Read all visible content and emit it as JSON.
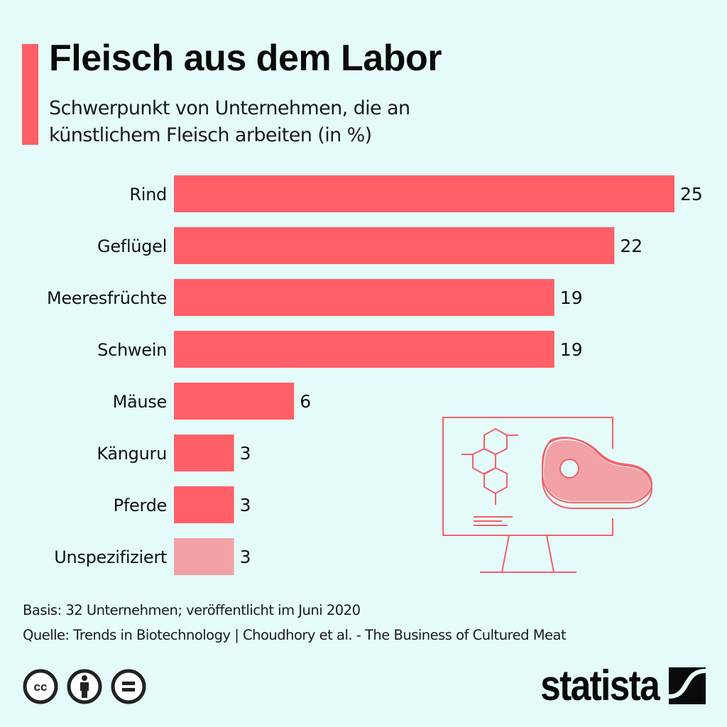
{
  "header": {
    "title": "Fleisch aus dem Labor",
    "subtitle_line1": "Schwerpunkt von Unternehmen, die an",
    "subtitle_line2": "künstlichem Fleisch arbeiten (in %)"
  },
  "colors": {
    "background": "#e4fbfa",
    "accent": "#ff5f66",
    "bar": "#ff5f66",
    "bar_unspecified": "#f2a2a6",
    "text": "#111111"
  },
  "chart_data": {
    "type": "bar",
    "orientation": "horizontal",
    "title": "Fleisch aus dem Labor",
    "subtitle": "Schwerpunkt von Unternehmen, die an künstlichem Fleisch arbeiten (in %)",
    "xlabel": "",
    "ylabel": "",
    "unit": "%",
    "categories": [
      "Rind",
      "Geflügel",
      "Meeresfrüchte",
      "Schwein",
      "Mäuse",
      "Känguru",
      "Pferde",
      "Unspezifiziert"
    ],
    "values": [
      25,
      22,
      19,
      19,
      6,
      3,
      3,
      3
    ],
    "highlight": [
      false,
      false,
      false,
      false,
      false,
      false,
      false,
      true
    ],
    "xlim": [
      0,
      25
    ],
    "grid": false,
    "legend": "none"
  },
  "illustration": {
    "description": "Monitor showing molecule diagram and a steak",
    "icons": [
      "monitor-icon",
      "molecule-icon",
      "steak-icon"
    ]
  },
  "footer": {
    "basis": "Basis: 32 Unternehmen; veröffentlicht im Juni 2020",
    "source": "Quelle: Trends in Biotechnology | Choudhory et al. - The Business of Cultured Meat",
    "license_icons": [
      "cc-icon",
      "by-attribution-icon",
      "no-derivatives-icon"
    ],
    "logo_text": "statista"
  }
}
